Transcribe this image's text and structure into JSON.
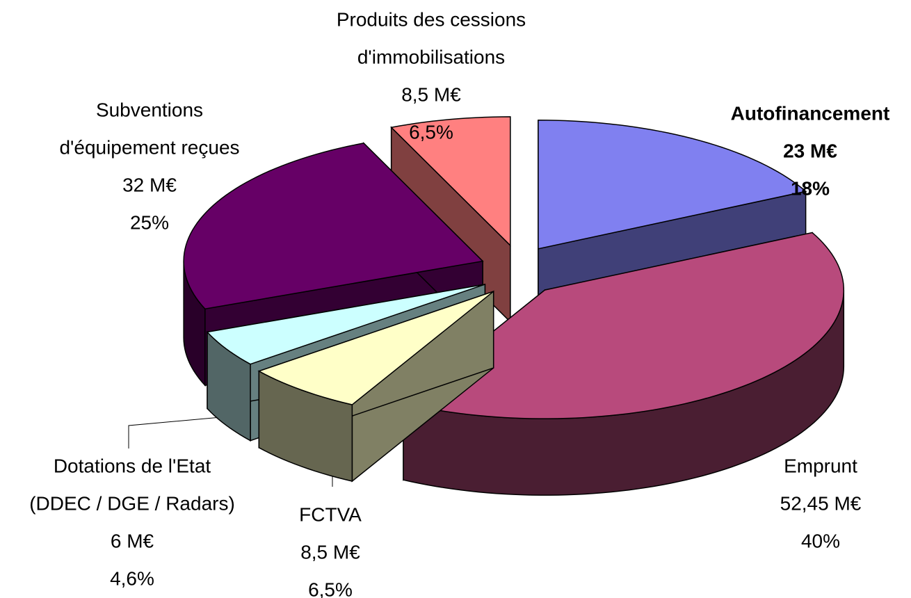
{
  "chart_data": {
    "type": "pie3d",
    "categories": [
      [
        "Autofinancement"
      ],
      [
        "Emprunt"
      ],
      [
        "FCTVA"
      ],
      [
        "Dotations de l'Etat",
        "(DDEC / DGE / Radars)"
      ],
      [
        "Subventions",
        "d'équipement reçues"
      ],
      [
        "Produits des cessions",
        "d'immobilisations"
      ]
    ],
    "values": [
      23,
      52.45,
      8.5,
      6,
      32,
      8.5
    ],
    "value_labels": [
      "23 M€",
      "52,45 M€",
      "8,5 M€",
      "6 M€",
      "32 M€",
      "8,5 M€"
    ],
    "percents": [
      18,
      40,
      6.5,
      4.6,
      25,
      6.5
    ],
    "percent_labels": [
      "18%",
      "40%",
      "6,5%",
      "4,6%",
      "25%",
      "6,5%"
    ],
    "colors": [
      "#8080f0",
      "#b84a7c",
      "#ffffc8",
      "#ccffff",
      "#660066",
      "#ff8080"
    ]
  }
}
